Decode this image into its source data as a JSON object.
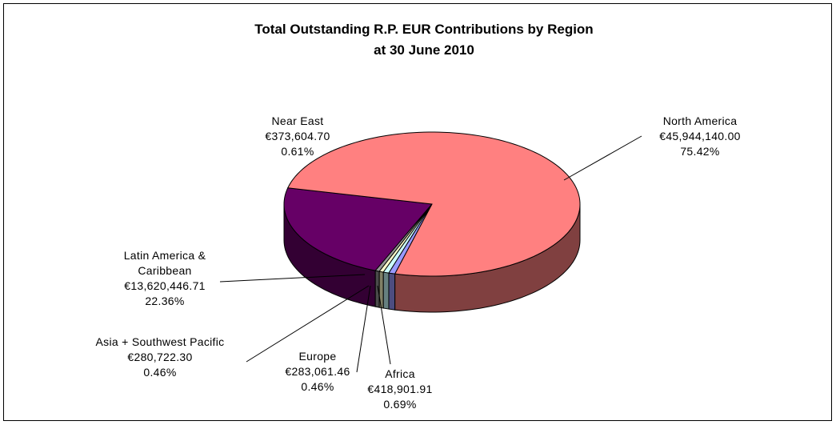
{
  "chart_data": {
    "type": "pie3d",
    "title": "Total Outstanding R.P. EUR Contributions by Region",
    "subtitle": "at 30 June 2010",
    "categories": [
      "Latin America & Caribbean",
      "Asia + Southwest Pacific",
      "Europe",
      "Near East",
      "Africa",
      "North America"
    ],
    "values": [
      13620446.71,
      280722.3,
      283061.46,
      373604.7,
      418901.91,
      45944140.0
    ],
    "value_labels": [
      "€13,620,446.71",
      "€280,722.30",
      "€283,061.46",
      "€373,604.70",
      "€418,901.91",
      "€45,944,140.00"
    ],
    "percentages": [
      22.36,
      0.46,
      0.46,
      0.61,
      0.69,
      75.42
    ],
    "percentage_labels": [
      "22.36%",
      "0.46%",
      "0.46%",
      "0.61%",
      "0.69%",
      "75.42%"
    ],
    "colors": [
      "#660066",
      "#969696",
      "#FFFFCC",
      "#CCFFFF",
      "#9999FF",
      "#FF8080"
    ]
  }
}
